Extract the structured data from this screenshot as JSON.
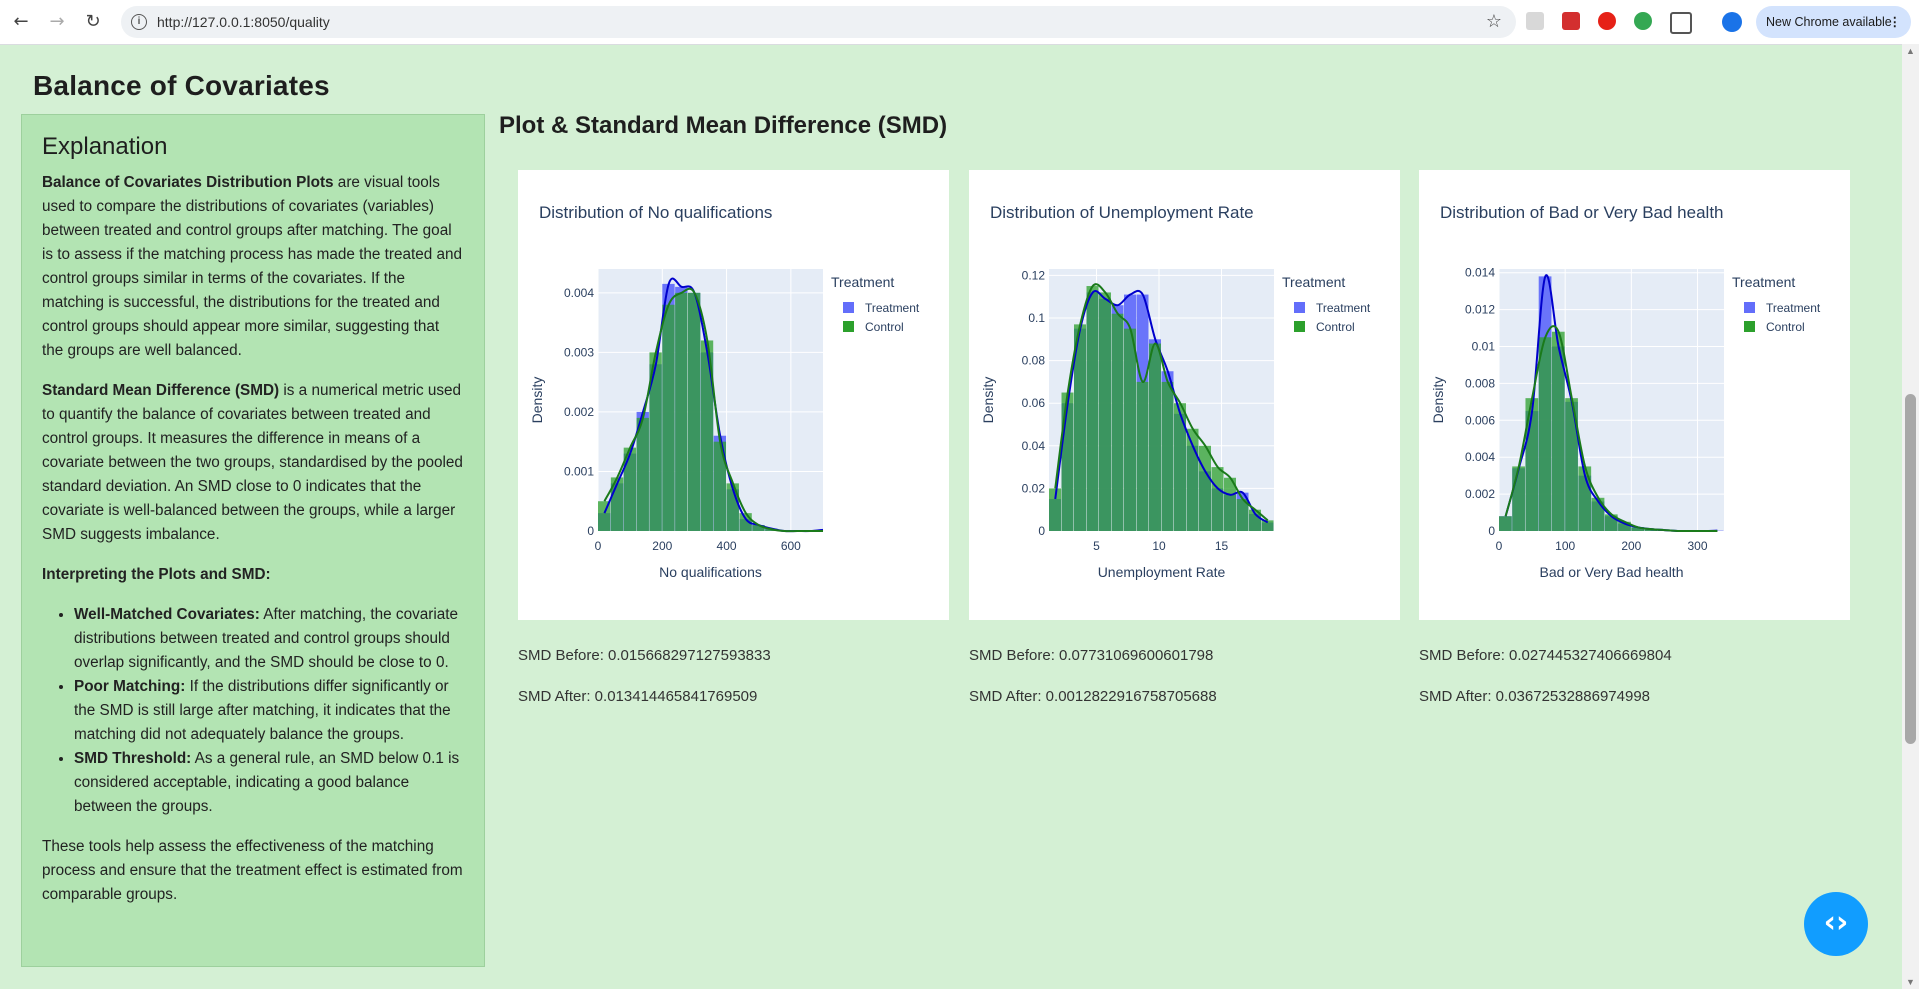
{
  "browser": {
    "url": "http://127.0.0.1:8050/quality",
    "update_badge": "New Chrome available",
    "back_icon": "arrow-left-icon",
    "forward_icon": "arrow-right-icon",
    "reload_icon": "reload-icon"
  },
  "page": {
    "title": "Balance of Covariates"
  },
  "explanation": {
    "heading": "Explanation",
    "p1_bold": "Balance of Covariates Distribution Plots",
    "p1_rest": " are visual tools used to compare the distributions of covariates (variables) between treated and control groups after matching. The goal is to assess if the matching process has made the treated and control groups similar in terms of the covariates. If the matching is successful, the distributions for the treated and control groups should appear more similar, suggesting that the groups are well balanced.",
    "p2_bold": "Standard Mean Difference (SMD)",
    "p2_rest": " is a numerical metric used to quantify the balance of covariates between treated and control groups. It measures the difference in means of a covariate between the two groups, standardised by the pooled standard deviation. An SMD close to 0 indicates that the covariate is well-balanced between the groups, while a larger SMD suggests imbalance.",
    "p3_bold": "Interpreting the Plots and SMD:",
    "bullets": [
      {
        "bold": "Well-Matched Covariates:",
        "rest": " After matching, the covariate distributions between treated and control groups should overlap significantly, and the SMD should be close to 0."
      },
      {
        "bold": "Poor Matching:",
        "rest": " If the distributions differ significantly or the SMD is still large after matching, it indicates that the matching did not adequately balance the groups."
      },
      {
        "bold": "SMD Threshold:",
        "rest": " As a general rule, an SMD below 0.1 is considered acceptable, indicating a good balance between the groups."
      }
    ],
    "p4": "These tools help assess the effectiveness of the matching process and ensure that the treatment effect is estimated from comparable groups."
  },
  "plots_section": {
    "title": "Plot & Standard Mean Difference (SMD)"
  },
  "colors": {
    "treatment": "#636efa",
    "control": "#2ca02c",
    "treatment_line": "#0000cc",
    "control_line": "#1a7a1a",
    "plot_bg": "#e5ecf6"
  },
  "chart_data": [
    {
      "type": "bar",
      "title": "Distribution of No qualifications",
      "xlabel": "No qualifications",
      "ylabel": "Density",
      "legend_title": "Treatment",
      "legend_position": "right",
      "xlim": [
        0,
        700
      ],
      "ylim": [
        0,
        0.0044
      ],
      "xticks": [
        0,
        200,
        400,
        600
      ],
      "yticks": [
        0,
        0.001,
        0.002,
        0.003,
        0.004
      ],
      "ytick_labels": [
        "0",
        "0.001",
        "0.002",
        "0.003",
        "0.004"
      ],
      "bin_edges": [
        0,
        40,
        80,
        120,
        160,
        200,
        240,
        280,
        320,
        360,
        400,
        440,
        480,
        520,
        560,
        600,
        640,
        680,
        720
      ],
      "series": [
        {
          "name": "Treatment",
          "values": [
            0.0003,
            0.0008,
            0.0013,
            0.002,
            0.0028,
            0.00415,
            0.0041,
            0.004,
            0.003,
            0.0016,
            0.0007,
            0.0002,
            0.0001,
            4e-05,
            0,
            0,
            0,
            2e-05
          ]
        },
        {
          "name": "Control",
          "values": [
            0.0005,
            0.0009,
            0.0014,
            0.0019,
            0.003,
            0.0038,
            0.004,
            0.004,
            0.0032,
            0.0015,
            0.0008,
            0.0003,
            0.0001,
            3e-05,
            0,
            0,
            0,
            0
          ]
        }
      ],
      "smd_before": "SMD Before: 0.015668297127593833",
      "smd_after": "SMD After: 0.013414465841769509"
    },
    {
      "type": "bar",
      "title": "Distribution of Unemployment Rate",
      "xlabel": "Unemployment Rate",
      "ylabel": "Density",
      "legend_title": "Treatment",
      "legend_position": "right",
      "xlim": [
        1.2,
        19.2
      ],
      "ylim": [
        0,
        0.123
      ],
      "xticks": [
        5,
        10,
        15
      ],
      "yticks": [
        0,
        0.02,
        0.04,
        0.06,
        0.08,
        0.1,
        0.12
      ],
      "ytick_labels": [
        "0",
        "0.02",
        "0.04",
        "0.06",
        "0.08",
        "0.1",
        "0.12"
      ],
      "bin_edges": [
        1.2,
        2.2,
        3.2,
        4.2,
        5.2,
        6.2,
        7.2,
        8.2,
        9.2,
        10.2,
        11.2,
        12.2,
        13.2,
        14.2,
        15.2,
        16.2,
        17.2,
        18.2,
        19.2
      ],
      "series": [
        {
          "name": "Treatment",
          "values": [
            0.015,
            0.06,
            0.095,
            0.112,
            0.109,
            0.106,
            0.111,
            0.111,
            0.09,
            0.075,
            0.055,
            0.04,
            0.028,
            0.02,
            0.017,
            0.018,
            0.008,
            0.004
          ]
        },
        {
          "name": "Control",
          "values": [
            0.02,
            0.065,
            0.097,
            0.115,
            0.112,
            0.102,
            0.095,
            0.07,
            0.088,
            0.07,
            0.06,
            0.048,
            0.04,
            0.03,
            0.025,
            0.015,
            0.01,
            0.005
          ]
        }
      ],
      "smd_before": "SMD Before: 0.07731069600601798",
      "smd_after": "SMD After: 0.0012822916758705688"
    },
    {
      "type": "bar",
      "title": "Distribution of Bad or Very Bad health",
      "xlabel": "Bad or Very Bad health",
      "ylabel": "Density",
      "legend_title": "Treatment",
      "legend_position": "right",
      "xlim": [
        0,
        340
      ],
      "ylim": [
        0,
        0.0142
      ],
      "xticks": [
        0,
        100,
        200,
        300
      ],
      "yticks": [
        0,
        0.002,
        0.004,
        0.006,
        0.008,
        0.01,
        0.012,
        0.014
      ],
      "ytick_labels": [
        "0",
        "0.002",
        "0.004",
        "0.006",
        "0.008",
        "0.01",
        "0.012",
        "0.014"
      ],
      "bin_edges": [
        0,
        20,
        40,
        60,
        80,
        100,
        120,
        140,
        160,
        180,
        200,
        220,
        240,
        260,
        280,
        300,
        320,
        340
      ],
      "series": [
        {
          "name": "Treatment",
          "values": [
            0.0008,
            0.0034,
            0.0065,
            0.0138,
            0.01,
            0.007,
            0.003,
            0.0016,
            0.0008,
            0.0004,
            0.0002,
            0.0001,
            5e-05,
            0,
            0,
            0,
            2e-05
          ]
        },
        {
          "name": "Control",
          "values": [
            0.0008,
            0.0035,
            0.0072,
            0.0105,
            0.0108,
            0.0072,
            0.0035,
            0.0018,
            0.0009,
            0.0005,
            0.0002,
            0.0001,
            5e-05,
            0,
            0,
            0,
            0
          ]
        }
      ],
      "smd_before": "SMD Before: 0.027445327406669804",
      "smd_after": "SMD After: 0.03672532886974998"
    }
  ]
}
